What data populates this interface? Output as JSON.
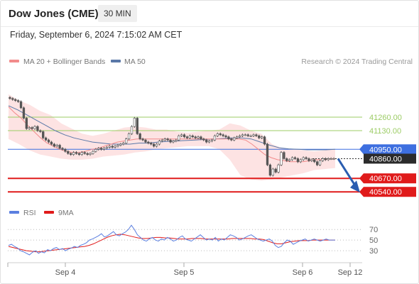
{
  "header": {
    "title": "Dow Jones (CME)",
    "interval": "30 MIN",
    "datetime": "Friday, September 6, 2024 7:15:02 AM CET"
  },
  "legend": {
    "ma20_bb": "MA 20 + Bollinger Bands",
    "ma50": "MA 50",
    "source": "Research © 2024 Trading Central",
    "rsi": "RSI",
    "rsi_ma": "9MA"
  },
  "colors": {
    "candle": "#555555",
    "ma20": "#f28b8b",
    "bband_fill": "#fde3e3",
    "ma50": "#5a78a8",
    "green_level": "#9ccc65",
    "blue_level": "#3d6fe0",
    "red_level": "#e01b1b",
    "rsi": "#5b7fe0",
    "rsi_ma": "#e01b1b",
    "arrow": "#2a5db0"
  },
  "chart_data": [
    {
      "type": "candlestick",
      "title": "",
      "x_ticks": [
        "Sep 4",
        "Sep 5",
        "Sep 6",
        "Sep 12"
      ],
      "ylim": [
        40480,
        41500
      ],
      "levels": [
        {
          "value": 41260,
          "label": "41260.00",
          "style": "green"
        },
        {
          "value": 41130,
          "label": "41130.00",
          "style": "green"
        },
        {
          "value": 40950,
          "label": "40950.00",
          "style": "blue"
        },
        {
          "value": 40860,
          "label": "40860.00",
          "style": "current"
        },
        {
          "value": 40670,
          "label": "40670.00",
          "style": "red"
        },
        {
          "value": 40540,
          "label": "40540.00",
          "style": "red"
        }
      ],
      "projection": {
        "from": 40860,
        "to": 40540
      },
      "close": [
        41440,
        41430,
        41420,
        41410,
        41350,
        41250,
        41150,
        41160,
        41150,
        41170,
        41130,
        41120,
        41060,
        41040,
        41020,
        41000,
        40980,
        40990,
        40960,
        40950,
        40930,
        40910,
        40900,
        40920,
        40910,
        40900,
        40920,
        40910,
        40900,
        40910,
        40930,
        40950,
        40960,
        40950,
        40960,
        40970,
        40980,
        40970,
        40980,
        40990,
        41000,
        41010,
        41050,
        41100,
        41170,
        41250,
        41100,
        41050,
        41040,
        41020,
        41010,
        41000,
        40980,
        41000,
        41030,
        41040,
        41050,
        41040,
        41020,
        41030,
        41040,
        41080,
        41090,
        41070,
        41060,
        41080,
        41070,
        41060,
        41070,
        41050,
        41040,
        41020,
        41030,
        41040,
        41080,
        41100,
        41090,
        41080,
        41070,
        41050,
        41040,
        41060,
        41070,
        41080,
        41090,
        41090,
        41080,
        41080,
        41090,
        41080,
        41060,
        41070,
        41000,
        40800,
        40700,
        40760,
        40730,
        40800,
        40920,
        40860,
        40840,
        40850,
        40870,
        40860,
        40830,
        40850,
        40870,
        40860,
        40840,
        40850,
        40830,
        40800,
        40840,
        40860,
        40850,
        40860,
        40860,
        40860
      ],
      "ma20": [
        41360,
        41300,
        41250,
        41180,
        41120,
        41060,
        41010,
        40980,
        40950,
        40930,
        40920,
        40920,
        40930,
        40950,
        40960,
        40980,
        41000,
        41020,
        41030,
        41040,
        41050,
        41050,
        41050,
        41050,
        41050,
        41050,
        41050,
        41050,
        41050,
        41050,
        41050,
        41050,
        41050,
        41050,
        41050,
        41050,
        41050,
        41040,
        41000,
        40950,
        40900,
        40870,
        40850,
        40840,
        40830,
        40830,
        40830,
        40840,
        40850,
        40850,
        40855,
        40860
      ],
      "ma50": [
        41370,
        41330,
        41280,
        41230,
        41180,
        41130,
        41090,
        41060,
        41040,
        41020,
        41010,
        41000,
        41000,
        41000,
        41010,
        41010,
        41020,
        41025,
        41030,
        41035,
        41040,
        41045,
        41050,
        41055,
        41060,
        41060,
        41050,
        41020,
        40990,
        40965,
        40955,
        40950,
        40945,
        40945,
        40945,
        40950
      ],
      "bb_upper": [
        41480,
        41420,
        41380,
        41320,
        41280,
        41200,
        41150,
        41100,
        41080,
        41100,
        41130,
        41160,
        41170,
        41160,
        41140,
        41140,
        41120,
        41110,
        41120,
        41130,
        41140,
        41200,
        41180,
        41130,
        41100,
        41000,
        40960,
        40950,
        40940,
        40930,
        40940,
        40950
      ],
      "bb_lower": [
        41050,
        41000,
        40940,
        40900,
        40880,
        40860,
        40850,
        40850,
        40860,
        40880,
        40890,
        40900,
        40920,
        40930,
        40950,
        40960,
        40970,
        40980,
        40980,
        40980,
        40950,
        40850,
        40700,
        40660,
        40650,
        40660,
        40680,
        40700,
        40720,
        40750,
        40760,
        40770
      ]
    },
    {
      "type": "line",
      "title": "RSI",
      "y_ticks": [
        70,
        50,
        30
      ],
      "ylim": [
        10,
        85
      ],
      "rsi": [
        40,
        42,
        38,
        35,
        30,
        28,
        25,
        22,
        27,
        30,
        25,
        28,
        26,
        32,
        30,
        34,
        36,
        32,
        34,
        30,
        33,
        35,
        38,
        36,
        40,
        42,
        45,
        50,
        52,
        55,
        58,
        62,
        56,
        58,
        62,
        66,
        60,
        58,
        62,
        65,
        70,
        78,
        70,
        60,
        55,
        50,
        48,
        52,
        55,
        50,
        48,
        52,
        50,
        55,
        52,
        48,
        50,
        55,
        58,
        52,
        50,
        48,
        52,
        56,
        60,
        55,
        50,
        52,
        50,
        55,
        48,
        52,
        50,
        55,
        60,
        58,
        55,
        50,
        52,
        55,
        58,
        60,
        56,
        52,
        50,
        48,
        50,
        52,
        48,
        40,
        36,
        38,
        45,
        50,
        48,
        42,
        45,
        48,
        50,
        52,
        48,
        50,
        52,
        50,
        48,
        50,
        52,
        50,
        50,
        50
      ],
      "rsi_ma": [
        38,
        36,
        34,
        32,
        30,
        29,
        28,
        28,
        29,
        30,
        31,
        32,
        33,
        34,
        35,
        36,
        37,
        38,
        40,
        43,
        47,
        51,
        55,
        58,
        60,
        61,
        60,
        58,
        56,
        54,
        53,
        53,
        54,
        55,
        55,
        54,
        54,
        53,
        52,
        52,
        52,
        53,
        53,
        53,
        52,
        52,
        52,
        52,
        52,
        52,
        53,
        53,
        53,
        53,
        53,
        52,
        52,
        51,
        48,
        45,
        43,
        43,
        45,
        47,
        48,
        49,
        49,
        49,
        50,
        50,
        50,
        50,
        50,
        50
      ]
    }
  ]
}
